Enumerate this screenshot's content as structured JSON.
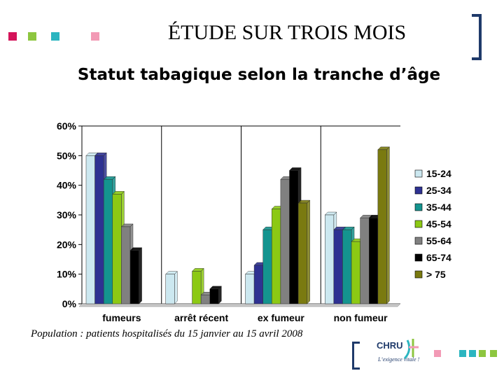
{
  "header": {
    "title": "ÉTUDE SUR TROIS MOIS",
    "subtitle": "Statut tabagique selon la tranche d’âge"
  },
  "footer": {
    "caption": "Population : patients hospitalisés du 15 janvier au 15 avril 2008",
    "logo_text": "CHRU",
    "logo_tagline": "L’exigence vitale !"
  },
  "decor": {
    "square_colors_top": [
      "#d4145a",
      "#8dc63f",
      "#2bb5c0",
      "#f29ab5"
    ],
    "square_colors_bottom": [
      "#f29ab5",
      "#2bb5c0",
      "#2bb5c0",
      "#8dc63f",
      "#8dc63f"
    ],
    "bracket_color": "#1f3a6a"
  },
  "chart_data": {
    "type": "bar",
    "categories": [
      "fumeurs",
      "arrêt récent",
      "ex fumeur",
      "non fumeur"
    ],
    "series": [
      {
        "name": "15-24",
        "color": "#cce8f0",
        "values": [
          50,
          10,
          10,
          30
        ]
      },
      {
        "name": "25-34",
        "color": "#2e3192",
        "values": [
          50,
          0,
          13,
          25
        ]
      },
      {
        "name": "35-44",
        "color": "#14948f",
        "values": [
          42,
          0,
          25,
          25
        ]
      },
      {
        "name": "45-54",
        "color": "#8cc914",
        "values": [
          37,
          11,
          32,
          21
        ]
      },
      {
        "name": "55-64",
        "color": "#808080",
        "values": [
          26,
          3,
          42,
          29
        ]
      },
      {
        "name": "65-74",
        "color": "#000000",
        "values": [
          18,
          5,
          45,
          29
        ]
      },
      {
        "name": "> 75",
        "color": "#7a7a10",
        "values": [
          0,
          0,
          34,
          52
        ]
      }
    ],
    "yticks": [
      "0%",
      "10%",
      "20%",
      "30%",
      "40%",
      "50%",
      "60%"
    ],
    "ylim": [
      0,
      60
    ],
    "grid": "vertical separators",
    "legend": "right"
  }
}
